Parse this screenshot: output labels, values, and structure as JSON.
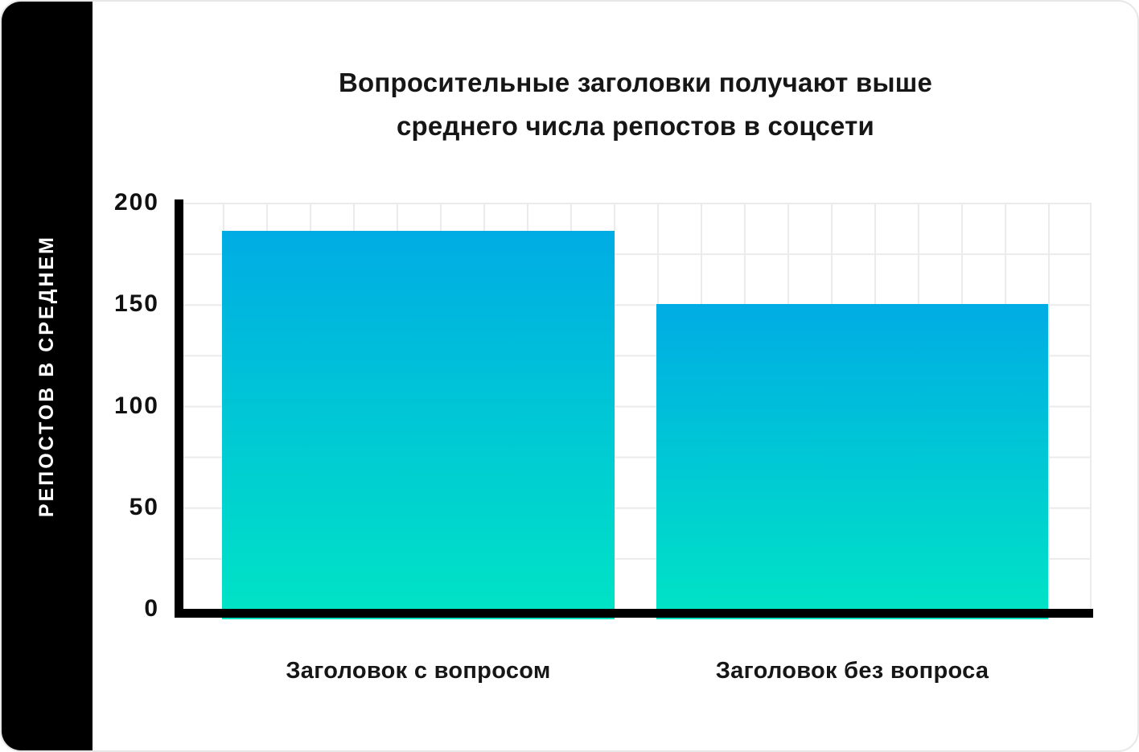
{
  "title": {
    "line1": "Вопросительные заголовки получают выше",
    "line2": "среднего числа репостов в соцсети"
  },
  "chart_data": {
    "type": "bar",
    "title": "Вопросительные заголовки получают выше среднего числа репостов в соцсети",
    "ylabel": "РЕПОСТОВ В СРЕДНЕМ",
    "xlabel": "",
    "categories": [
      "Заголовок с вопросом",
      "Заголовок без вопроса"
    ],
    "values": [
      186,
      150
    ],
    "ylim": [
      0,
      200
    ],
    "yticks": [
      200,
      150,
      100,
      50,
      0
    ],
    "grid": true,
    "legend": false,
    "colors": {
      "bar_gradient_top": "#00ACE4",
      "bar_gradient_bottom": "#00E4C5",
      "axis": "#000000",
      "gridline": "#EBEBEB",
      "text": "#161616",
      "ylabel_text": "#FFFFFF",
      "sideband_background": "#000000",
      "card_border": "#E7E7E7",
      "card_background": "#FFFFFF"
    }
  }
}
